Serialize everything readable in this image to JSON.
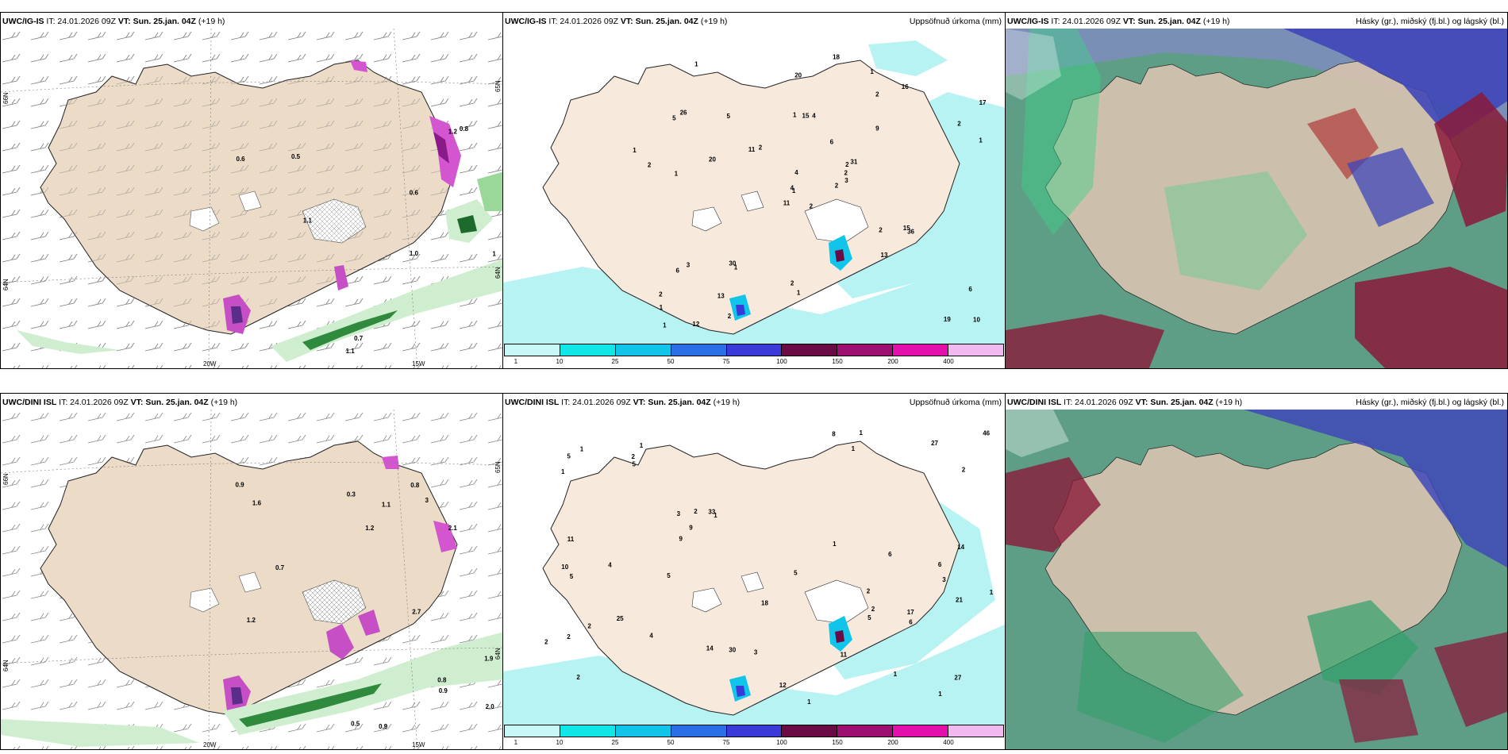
{
  "panels": {
    "top_left": {
      "model": "UWC/IG-IS",
      "rest": " IT: 24.01.2026 09Z ",
      "vt": "VT: Sun. 25.jan. 04Z",
      "lead": " (+19 h)",
      "right": ""
    },
    "top_mid": {
      "model": "UWC/IG-IS",
      "rest": " IT: 24.01.2026 09Z ",
      "vt": "VT: Sun. 25.jan. 04Z",
      "lead": " (+19 h)",
      "right": "Uppsöfnuð úrkoma (mm)"
    },
    "top_right": {
      "model": "UWC/IG-IS",
      "rest": " IT: 24.01.2026 09Z ",
      "vt": "VT: Sun. 25.jan. 04Z",
      "lead": " (+19 h)",
      "right": "Hásky (gr.), miðský (fj.bl.) og lágský (bl.)"
    },
    "bottom_left": {
      "model": "UWC/DINI ISL",
      "rest": " IT: 24.01.2026 09Z ",
      "vt": "VT: Sun. 25.jan. 04Z",
      "lead": " (+19 h)",
      "right": ""
    },
    "bottom_mid": {
      "model": "UWC/DINI ISL",
      "rest": " IT: 24.01.2026 09Z ",
      "vt": "VT: Sun. 25.jan. 04Z",
      "lead": " (+19 h)",
      "right": "Uppsöfnuð úrkoma (mm)"
    },
    "bottom_right": {
      "model": "UWC/DINI ISL",
      "rest": " IT: 24.01.2026 09Z ",
      "vt": "VT: Sun. 25.jan. 04Z",
      "lead": " (+19 h)",
      "right": "Hásky (gr.), miðský (fj.bl.) og lágský (bl.)"
    }
  },
  "axis_labels": {
    "lat66": "66N",
    "lat64": "64N",
    "lat65": "65N",
    "lon20": "20W",
    "lon15": "15W"
  },
  "legend": {
    "ticks": [
      "1",
      "10",
      "25",
      "50",
      "75",
      "100",
      "150",
      "200",
      "400"
    ],
    "colors": [
      "#c8f7f7",
      "#11e6e6",
      "#10c4ea",
      "#2a6fe6",
      "#3a3ad8",
      "#6b0b45",
      "#9d0f70",
      "#e410ab",
      "#f2b8f0"
    ]
  },
  "colors": {
    "land": "#f4e4d2",
    "land_wind": "#e8d9c6",
    "sea": "#ffffff",
    "precip_light": "#b8f3f3"
  },
  "precip_top": [
    "2",
    "5",
    "1",
    "2",
    "2",
    "1",
    "1",
    "4",
    "2",
    "2",
    "1",
    "10",
    "1",
    "17",
    "11",
    "9",
    "12",
    "1",
    "6",
    "3",
    "2",
    "1",
    "13",
    "15",
    "31",
    "36",
    "26",
    "20",
    "2",
    "2",
    "1",
    "4",
    "2",
    "4",
    "5",
    "16",
    "30",
    "19",
    "6",
    "15",
    "18",
    "11",
    "20",
    "13",
    "2",
    "1",
    "2",
    "1",
    "1",
    "3",
    "6",
    "2"
  ],
  "precip_bottom": [
    "2",
    "3",
    "2",
    "1",
    "1",
    "1",
    "2",
    "1",
    "3",
    "1",
    "1",
    "10",
    "5",
    "27",
    "14",
    "14",
    "18",
    "5",
    "33",
    "25",
    "46",
    "27",
    "9",
    "21",
    "8",
    "2",
    "2",
    "5",
    "5",
    "6",
    "12",
    "11",
    "9",
    "5",
    "6",
    "6",
    "5",
    "4",
    "3",
    "2",
    "2",
    "1",
    "1",
    "30",
    "17",
    "4",
    "2",
    "1",
    "1",
    "11",
    "1",
    "2"
  ],
  "wind_top": [
    "0.6",
    "0.5",
    "0.6",
    "0.7",
    "1.2",
    "1.1",
    "1.0",
    "1.1",
    "0.8",
    "1"
  ],
  "wind_bottom": [
    "1.2",
    "0.9",
    "0.9",
    "2.1",
    "0.5",
    "0.3",
    "0.9",
    "0.8",
    "0.7",
    "1.2",
    "0.8",
    "1.1",
    "2.7",
    "1.6",
    "2.0",
    "3",
    "1.9"
  ]
}
